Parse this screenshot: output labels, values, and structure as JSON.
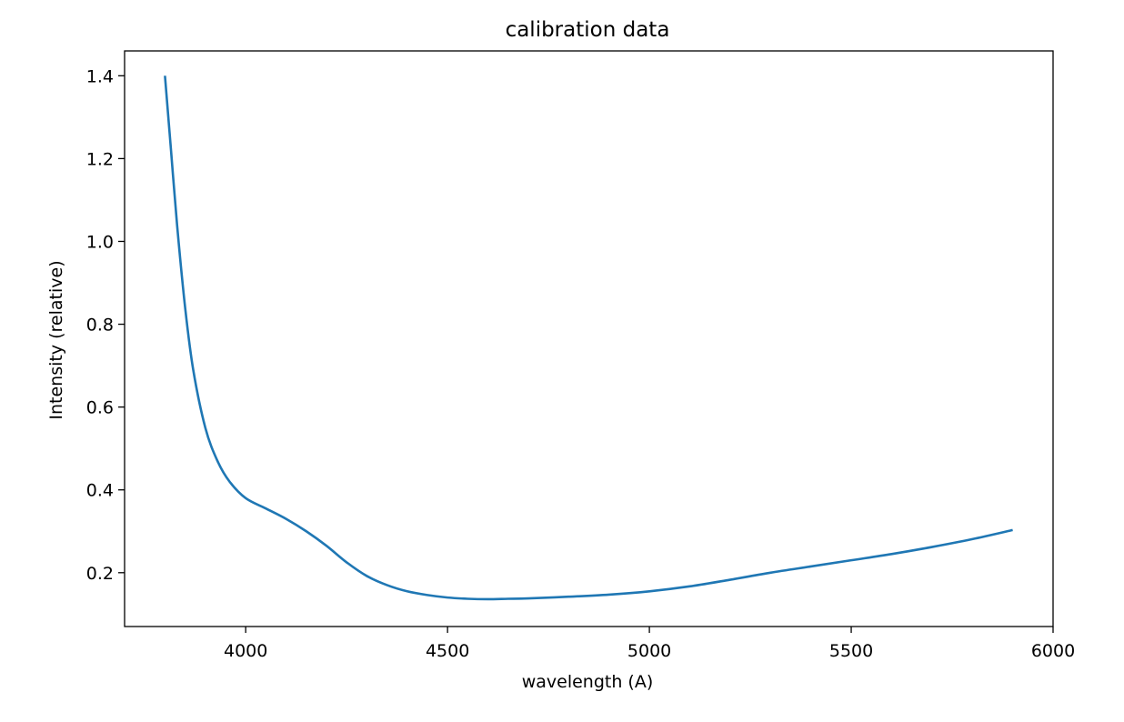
{
  "chart_data": {
    "type": "line",
    "title": "calibration data",
    "xlabel": "wavelength (A)",
    "ylabel": "Intensity (relative)",
    "xlim": [
      3700,
      6000
    ],
    "ylim": [
      0.07,
      1.46
    ],
    "xticks": [
      4000,
      4500,
      5000,
      5500,
      6000
    ],
    "xtick_labels": [
      "4000",
      "4500",
      "5000",
      "5500",
      "6000"
    ],
    "yticks": [
      0.2,
      0.4,
      0.6,
      0.8,
      1.0,
      1.2,
      1.4
    ],
    "ytick_labels": [
      "0.2",
      "0.4",
      "0.6",
      "0.8",
      "1.0",
      "1.2",
      "1.4"
    ],
    "grid": false,
    "series": [
      {
        "color": "#1f77b4",
        "x": [
          3800,
          3815,
          3830,
          3850,
          3870,
          3900,
          3930,
          3960,
          4000,
          4050,
          4100,
          4150,
          4200,
          4250,
          4300,
          4350,
          4400,
          4450,
          4500,
          4550,
          4600,
          4650,
          4700,
          4800,
          4900,
          5000,
          5100,
          5200,
          5300,
          5400,
          5500,
          5600,
          5700,
          5800,
          5900
        ],
        "y": [
          1.4,
          1.22,
          1.04,
          0.84,
          0.69,
          0.55,
          0.47,
          0.42,
          0.38,
          0.355,
          0.33,
          0.3,
          0.265,
          0.225,
          0.192,
          0.17,
          0.155,
          0.146,
          0.14,
          0.137,
          0.136,
          0.137,
          0.138,
          0.142,
          0.147,
          0.155,
          0.167,
          0.183,
          0.2,
          0.215,
          0.23,
          0.245,
          0.262,
          0.281,
          0.303
        ]
      }
    ]
  }
}
